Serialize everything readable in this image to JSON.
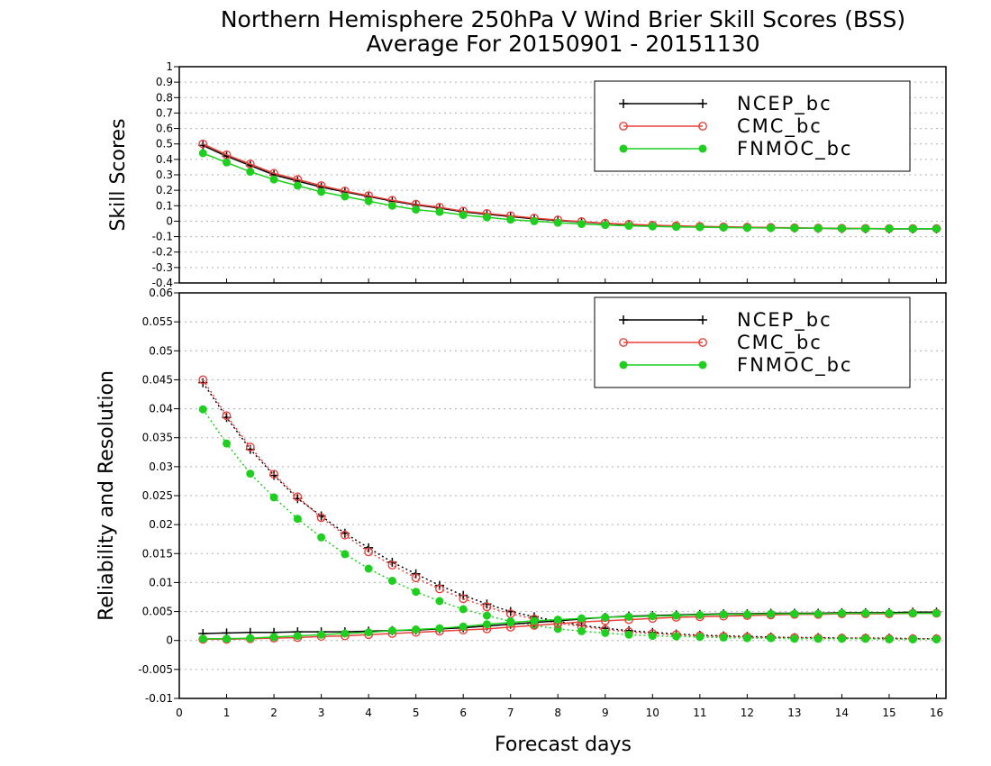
{
  "title_line1": "Northern Hemisphere 250hPa V Wind Brier Skill Scores (BSS)",
  "title_line2": "Average For 20150901 - 20151130",
  "xlabel": "Forecast days",
  "colors": {
    "NCEP_bc": "#000000",
    "CMC_bc": "#e8413c",
    "FNMOC_bc": "#1fcf1f"
  },
  "chart_data": [
    {
      "type": "line",
      "panel": "top",
      "ylabel": "Skill Scores",
      "xlim": [
        0,
        16.2
      ],
      "ylim": [
        -0.4,
        1
      ],
      "xticks": [
        0,
        1,
        2,
        3,
        4,
        5,
        6,
        7,
        8,
        9,
        10,
        11,
        12,
        13,
        14,
        15,
        16
      ],
      "yticks": [
        -0.4,
        -0.3,
        -0.2,
        -0.1,
        0,
        0.1,
        0.2,
        0.3,
        0.4,
        0.5,
        0.6,
        0.7,
        0.8,
        0.9,
        1
      ],
      "ytick_labels": [
        "-0.4",
        "-0.3",
        "-0.2",
        "-0.1",
        "0",
        "0.1",
        "0.2",
        "0.3",
        "0.4",
        "0.5",
        "0.6",
        "0.7",
        "0.8",
        "0.9",
        "1"
      ],
      "grid": true,
      "legend_position": "top-right",
      "x": [
        0.5,
        1,
        1.5,
        2,
        2.5,
        3,
        3.5,
        4,
        4.5,
        5,
        5.5,
        6,
        6.5,
        7,
        7.5,
        8,
        8.5,
        9,
        9.5,
        10,
        10.5,
        11,
        11.5,
        12,
        12.5,
        13,
        13.5,
        14,
        14.5,
        15,
        15.5,
        16
      ],
      "series": [
        {
          "name": "NCEP_bc",
          "marker": "plus",
          "style": "solid",
          "values": [
            0.49,
            0.42,
            0.36,
            0.3,
            0.26,
            0.22,
            0.19,
            0.16,
            0.13,
            0.105,
            0.085,
            0.06,
            0.045,
            0.03,
            0.015,
            0.005,
            -0.005,
            -0.015,
            -0.022,
            -0.028,
            -0.032,
            -0.035,
            -0.038,
            -0.04,
            -0.042,
            -0.044,
            -0.046,
            -0.048,
            -0.049,
            -0.05,
            -0.05,
            -0.05
          ]
        },
        {
          "name": "CMC_bc",
          "marker": "open-circle",
          "style": "solid",
          "values": [
            0.5,
            0.43,
            0.37,
            0.31,
            0.27,
            0.23,
            0.195,
            0.165,
            0.135,
            0.11,
            0.09,
            0.065,
            0.05,
            0.035,
            0.02,
            0.008,
            -0.003,
            -0.013,
            -0.02,
            -0.026,
            -0.03,
            -0.034,
            -0.037,
            -0.039,
            -0.041,
            -0.043,
            -0.045,
            -0.046,
            -0.047,
            -0.048,
            -0.048,
            -0.048
          ]
        },
        {
          "name": "FNMOC_bc",
          "marker": "filled-circle",
          "style": "solid",
          "values": [
            0.44,
            0.38,
            0.32,
            0.27,
            0.23,
            0.19,
            0.16,
            0.13,
            0.1,
            0.075,
            0.06,
            0.04,
            0.025,
            0.01,
            0.0,
            -0.01,
            -0.018,
            -0.025,
            -0.03,
            -0.034,
            -0.037,
            -0.039,
            -0.041,
            -0.043,
            -0.044,
            -0.045,
            -0.046,
            -0.047,
            -0.048,
            -0.048,
            -0.049,
            -0.049
          ]
        }
      ]
    },
    {
      "type": "line",
      "panel": "bottom",
      "ylabel": "Reliability and Resolution",
      "xlim": [
        0,
        16.2
      ],
      "ylim": [
        -0.01,
        0.06
      ],
      "xticks": [
        0,
        1,
        2,
        3,
        4,
        5,
        6,
        7,
        8,
        9,
        10,
        11,
        12,
        13,
        14,
        15,
        16
      ],
      "yticks": [
        -0.01,
        -0.005,
        0,
        0.005,
        0.01,
        0.015,
        0.02,
        0.025,
        0.03,
        0.035,
        0.04,
        0.045,
        0.05,
        0.055,
        0.06
      ],
      "ytick_labels": [
        "-0.01",
        "-0.005",
        "0",
        "0.005",
        "0.01",
        "0.015",
        "0.02",
        "0.025",
        "0.03",
        "0.035",
        "0.04",
        "0.045",
        "0.05",
        "0.055",
        "0.06"
      ],
      "grid": true,
      "legend_position": "top-right",
      "x": [
        0.5,
        1,
        1.5,
        2,
        2.5,
        3,
        3.5,
        4,
        4.5,
        5,
        5.5,
        6,
        6.5,
        7,
        7.5,
        8,
        8.5,
        9,
        9.5,
        10,
        10.5,
        11,
        11.5,
        12,
        12.5,
        13,
        13.5,
        14,
        14.5,
        15,
        15.5,
        16
      ],
      "series": [
        {
          "name": "NCEP_bc",
          "role": "reliability",
          "marker": "plus",
          "style": "dotted",
          "values": [
            0.0445,
            0.0385,
            0.033,
            0.0285,
            0.0245,
            0.0215,
            0.0185,
            0.016,
            0.0135,
            0.0115,
            0.0095,
            0.0078,
            0.0063,
            0.005,
            0.0041,
            0.0033,
            0.0026,
            0.0021,
            0.0017,
            0.0014,
            0.0011,
            0.0009,
            0.0008,
            0.0007,
            0.0006,
            0.0005,
            0.0005,
            0.0004,
            0.0004,
            0.0004,
            0.0003,
            0.0003
          ]
        },
        {
          "name": "CMC_bc",
          "role": "reliability",
          "marker": "open-circle",
          "style": "dotted",
          "values": [
            0.045,
            0.0388,
            0.0334,
            0.0287,
            0.0248,
            0.0212,
            0.0182,
            0.0153,
            0.013,
            0.0108,
            0.0089,
            0.0072,
            0.0058,
            0.0046,
            0.0037,
            0.003,
            0.0024,
            0.0019,
            0.0015,
            0.0012,
            0.001,
            0.0008,
            0.0007,
            0.0006,
            0.0005,
            0.0005,
            0.0004,
            0.0004,
            0.0004,
            0.0003,
            0.0003,
            0.0003
          ]
        },
        {
          "name": "FNMOC_bc",
          "role": "reliability",
          "marker": "filled-circle",
          "style": "dotted",
          "values": [
            0.0399,
            0.034,
            0.0288,
            0.0247,
            0.021,
            0.0178,
            0.0149,
            0.0124,
            0.0103,
            0.0084,
            0.0068,
            0.0054,
            0.0043,
            0.0033,
            0.0026,
            0.002,
            0.0016,
            0.0013,
            0.001,
            0.0008,
            0.0007,
            0.0006,
            0.0005,
            0.0004,
            0.0004,
            0.0003,
            0.0003,
            0.0003,
            0.0003,
            0.0002,
            0.0002,
            0.0002
          ]
        },
        {
          "name": "NCEP_bc",
          "role": "resolution",
          "marker": "plus",
          "style": "solid",
          "values": [
            0.0012,
            0.0013,
            0.0014,
            0.0014,
            0.0015,
            0.0015,
            0.0015,
            0.0016,
            0.0017,
            0.0018,
            0.002,
            0.0022,
            0.0025,
            0.0028,
            0.0031,
            0.0034,
            0.0037,
            0.004,
            0.0042,
            0.0043,
            0.0044,
            0.0045,
            0.0046,
            0.0046,
            0.0047,
            0.0047,
            0.0047,
            0.0048,
            0.0048,
            0.0048,
            0.0049,
            0.0049
          ]
        },
        {
          "name": "CMC_bc",
          "role": "resolution",
          "marker": "open-circle",
          "style": "solid",
          "values": [
            0.0002,
            0.0002,
            0.0003,
            0.0004,
            0.0005,
            0.0007,
            0.0008,
            0.001,
            0.0012,
            0.0014,
            0.0016,
            0.0018,
            0.002,
            0.0023,
            0.0026,
            0.0029,
            0.0032,
            0.0034,
            0.0036,
            0.0038,
            0.004,
            0.0041,
            0.0042,
            0.0043,
            0.0044,
            0.0045,
            0.0045,
            0.0046,
            0.0046,
            0.0046,
            0.0047,
            0.0047
          ]
        },
        {
          "name": "FNMOC_bc",
          "role": "resolution",
          "marker": "filled-circle",
          "style": "solid",
          "values": [
            0.0003,
            0.0003,
            0.0004,
            0.0006,
            0.0008,
            0.001,
            0.0012,
            0.0014,
            0.0017,
            0.0019,
            0.0021,
            0.0024,
            0.0028,
            0.0031,
            0.0034,
            0.0036,
            0.0038,
            0.004,
            0.0041,
            0.0042,
            0.0043,
            0.0044,
            0.0045,
            0.0045,
            0.0046,
            0.0046,
            0.0046,
            0.0047,
            0.0047,
            0.0047,
            0.0047,
            0.0047
          ]
        }
      ]
    }
  ]
}
